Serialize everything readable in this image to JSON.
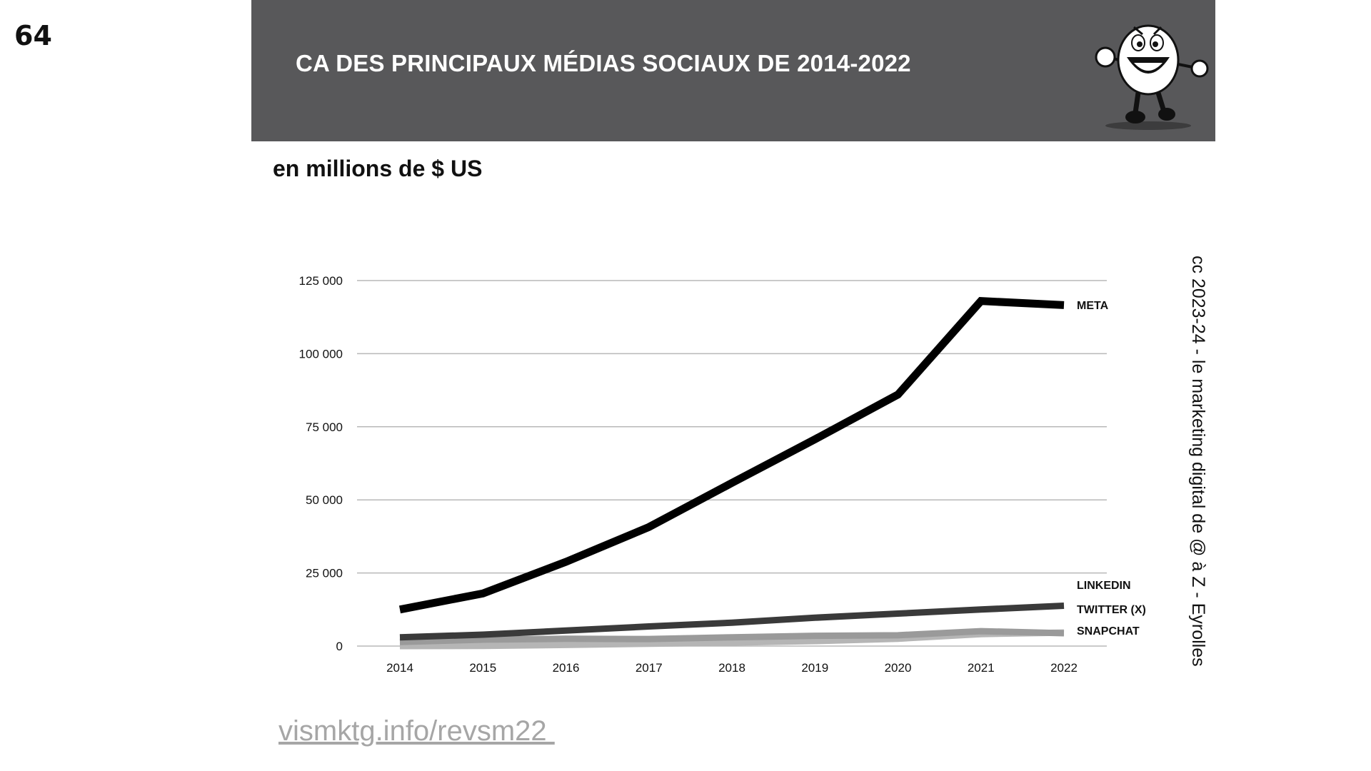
{
  "slide_number": "64",
  "header": {
    "title": "CA DES PRINCIPAUX MÉDIAS SOCIAUX DE 2014-2022",
    "background": "#58585a",
    "mascot_icon": "running-cartoon-mascot"
  },
  "units_label": "en millions de $ US",
  "credit": "cc 2023-24  - le marketing digital de @ à Z - Eyrolles",
  "footer_link": "vismktg.info/revsm22 ",
  "chart_data": {
    "type": "line",
    "title": "",
    "xlabel": "",
    "ylabel": "",
    "x": [
      "2014",
      "2015",
      "2016",
      "2017",
      "2018",
      "2019",
      "2020",
      "2021",
      "2022"
    ],
    "ylim": [
      0,
      125000
    ],
    "yticks": [
      0,
      25000,
      50000,
      75000,
      100000,
      125000
    ],
    "ytick_labels": [
      "0",
      "25 000",
      "50 000",
      "75 000",
      "100 000",
      "125 000"
    ],
    "grid": true,
    "legend": "direct labels at line ends (right)",
    "series": [
      {
        "name": "META",
        "color": "#000000",
        "values": [
          12500,
          18000,
          28800,
          40700,
          55800,
          70700,
          86000,
          118000,
          116600
        ]
      },
      {
        "name": "LINKEDIN",
        "color": "#3a3a3a",
        "values": [
          3000,
          3900,
          5300,
          6700,
          8000,
          9700,
          11100,
          12500,
          13800
        ]
      },
      {
        "name": "TWITTER (X)",
        "color": "#9a9a9a",
        "values": [
          1400,
          2200,
          2500,
          2400,
          3000,
          3500,
          3700,
          5100,
          4400
        ]
      },
      {
        "name": "SNAPCHAT",
        "color": "#b5b5b5",
        "values": [
          0,
          60,
          400,
          800,
          1200,
          1700,
          2500,
          4100,
          4600
        ]
      }
    ]
  }
}
